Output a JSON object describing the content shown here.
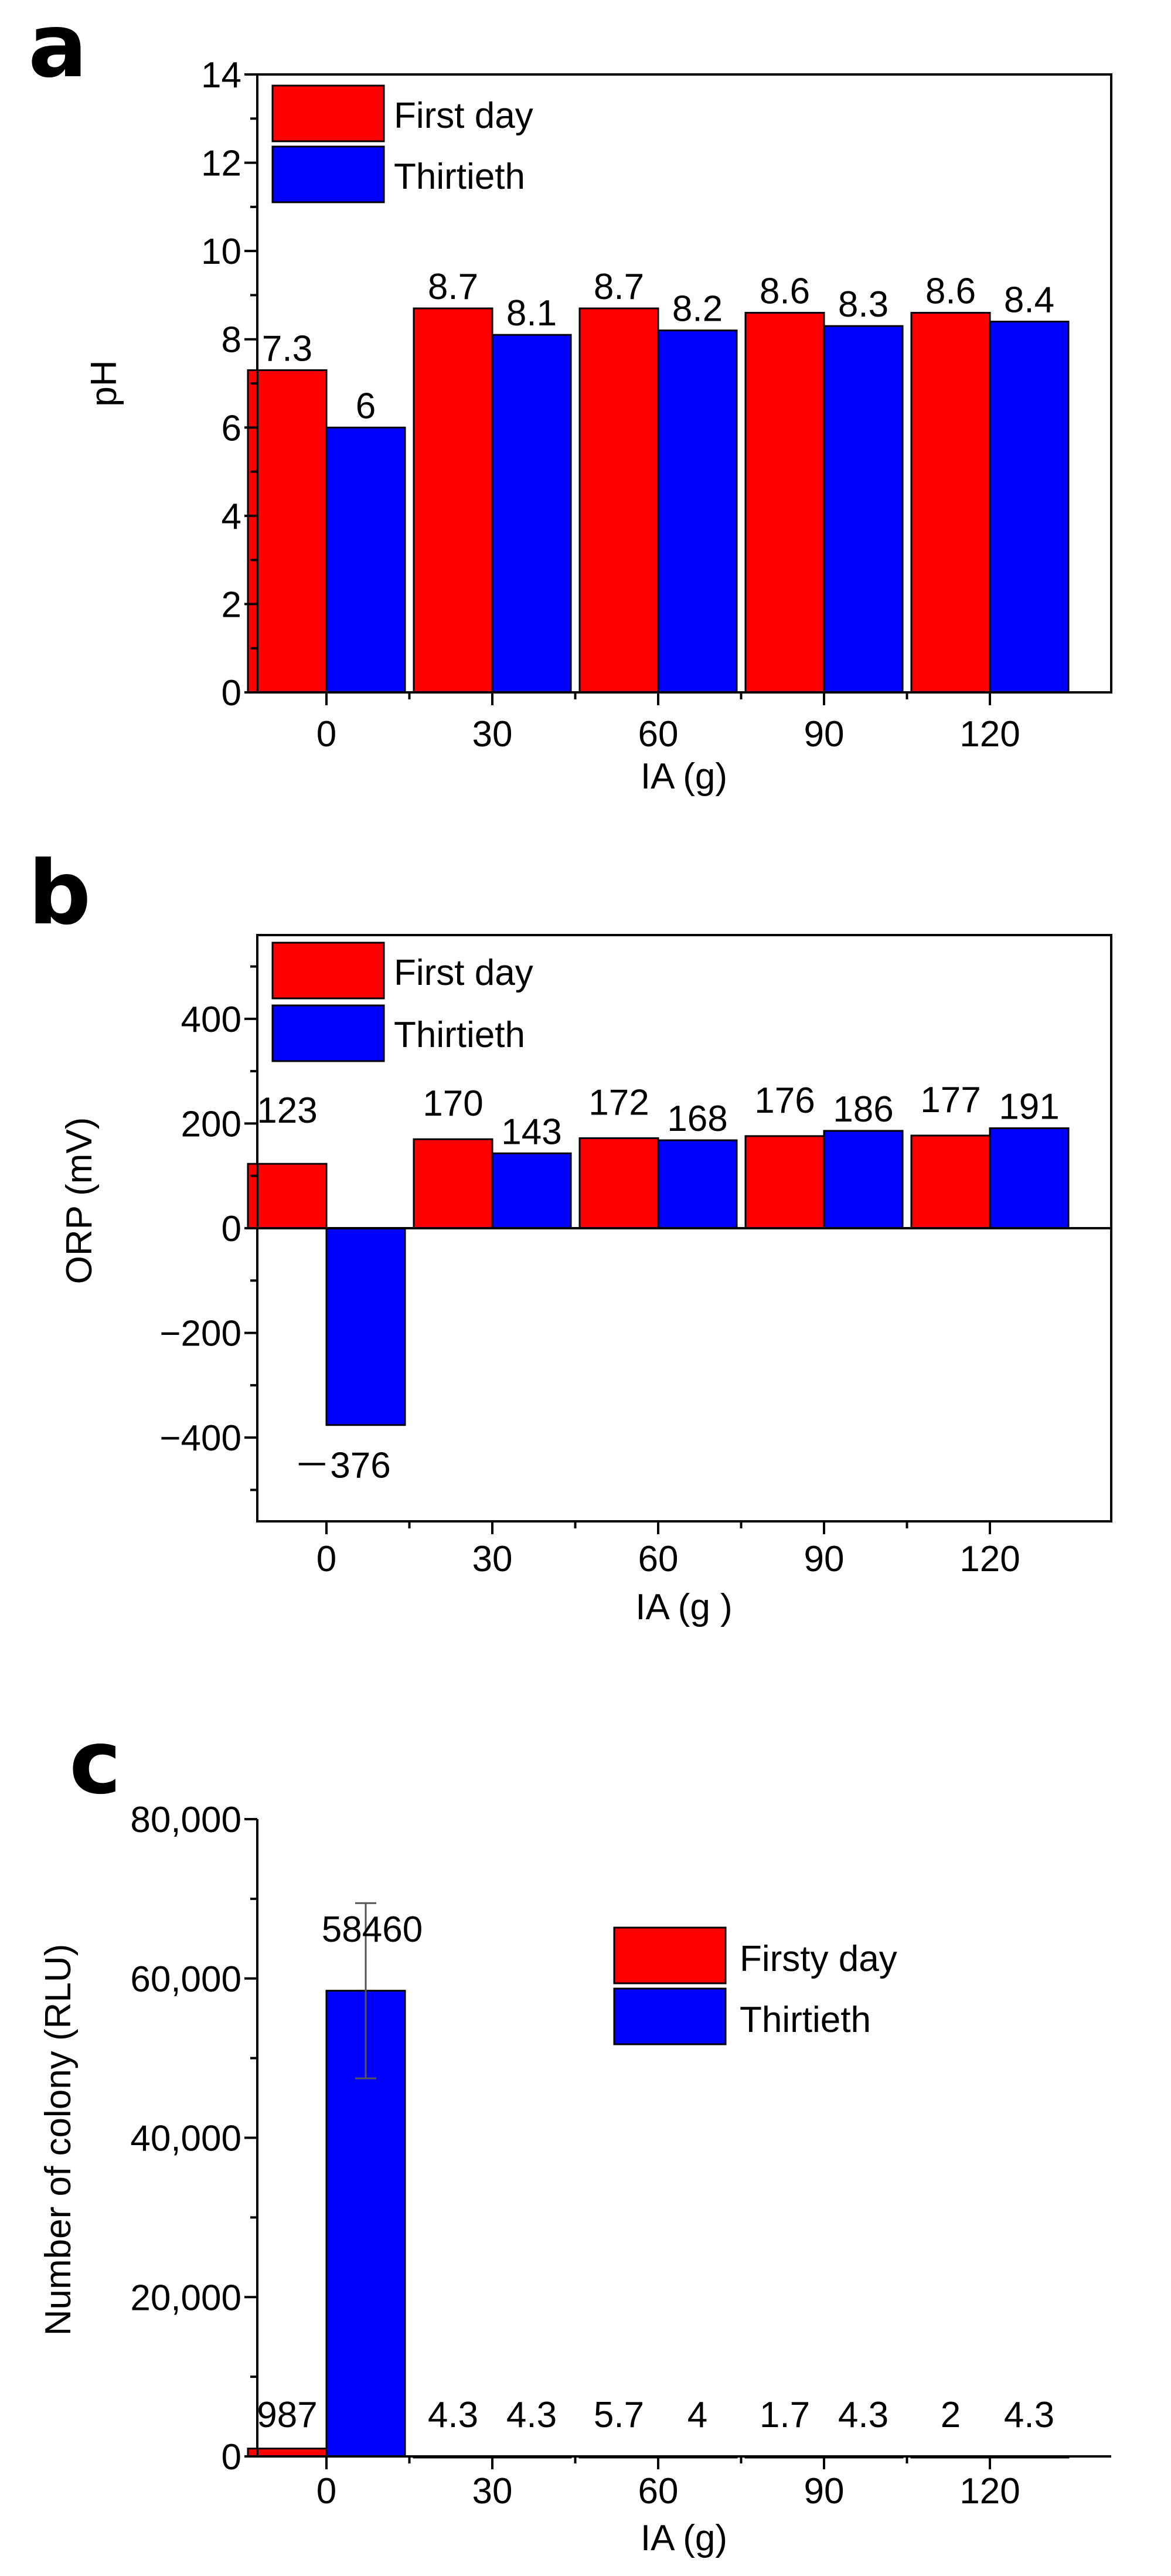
{
  "panels": [
    {
      "letter": "a"
    },
    {
      "letter": "b"
    },
    {
      "letter": "c"
    }
  ],
  "colors": {
    "first": "#ff0000",
    "thirtieth": "#0000ff",
    "axis": "#000000"
  },
  "chart_data": [
    {
      "type": "bar",
      "title": "",
      "categories": [
        "0",
        "30",
        "60",
        "90",
        "120"
      ],
      "series": [
        {
          "name": "First day",
          "values": [
            7.3,
            8.7,
            8.7,
            8.6,
            8.6
          ],
          "labels": [
            "7.3",
            "8.7",
            "8.7",
            "8.6",
            "8.6"
          ]
        },
        {
          "name": "Thirtieth",
          "values": [
            6,
            8.1,
            8.2,
            8.3,
            8.4
          ],
          "labels": [
            "6",
            "8.1",
            "8.2",
            "8.3",
            "8.4"
          ]
        }
      ],
      "xlabel": "IA (g)",
      "ylabel": "pH",
      "ylim": [
        0,
        14
      ],
      "yticks": [
        "0",
        "2",
        "4",
        "6",
        "8",
        "10",
        "12",
        "14"
      ],
      "legend": "top-left"
    },
    {
      "type": "bar",
      "title": "",
      "categories": [
        "0",
        "30",
        "60",
        "90",
        "120"
      ],
      "series": [
        {
          "name": "First day",
          "values": [
            123,
            170,
            172,
            176,
            177
          ],
          "labels": [
            "123",
            "170",
            "172",
            "176",
            "177"
          ]
        },
        {
          "name": "Thirtieth",
          "values": [
            -376,
            143,
            168,
            186,
            191
          ],
          "labels": [
            "－376",
            "143",
            "168",
            "186",
            "191"
          ]
        }
      ],
      "xlabel": "IA (g )",
      "ylabel": "ORP (mV)",
      "ylim": [
        -560,
        560
      ],
      "yticks": [
        "−400",
        "−200",
        "0",
        "200",
        "400"
      ],
      "legend": "top-left"
    },
    {
      "type": "bar",
      "title": "",
      "categories": [
        "0",
        "30",
        "60",
        "90",
        "120"
      ],
      "series": [
        {
          "name": "Firsty day",
          "values": [
            987,
            4.3,
            5.7,
            1.7,
            2
          ],
          "labels": [
            "987",
            "4.3",
            "5.7",
            "1.7",
            "2"
          ]
        },
        {
          "name": "Thirtieth",
          "values": [
            58460,
            4.3,
            4,
            4.3,
            4.3
          ],
          "labels": [
            "58460",
            "4.3",
            "4",
            "4.3",
            "4.3"
          ],
          "error": [
            11000,
            0,
            0,
            0,
            0
          ]
        }
      ],
      "xlabel": "IA (g)",
      "ylabel": "Number of colony (RLU)",
      "ylim": [
        0,
        80000
      ],
      "yticks": [
        "0",
        "20,000",
        "40,000",
        "60,000",
        "80,000"
      ],
      "legend": "middle-right"
    }
  ]
}
